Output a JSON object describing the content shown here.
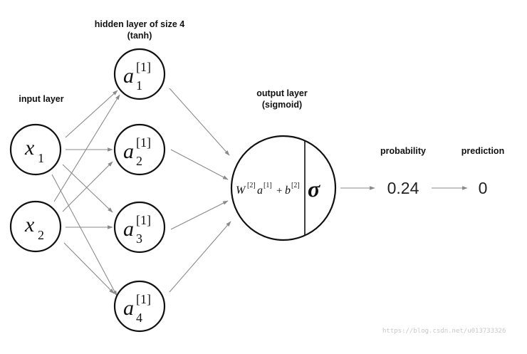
{
  "labels": {
    "input_layer": "input layer",
    "hidden_layer_line1": "hidden layer of size 4",
    "hidden_layer_line2": "(tanh)",
    "output_layer_line1": "output layer",
    "output_layer_line2": "(sigmoid)",
    "probability": "probability",
    "prediction": "prediction"
  },
  "inputs": [
    {
      "symbol": "x",
      "index": "1"
    },
    {
      "symbol": "x",
      "index": "2"
    }
  ],
  "hidden": [
    {
      "symbol": "a",
      "superscript": "[1]",
      "index": "1"
    },
    {
      "symbol": "a",
      "superscript": "[1]",
      "index": "2"
    },
    {
      "symbol": "a",
      "superscript": "[1]",
      "index": "3"
    },
    {
      "symbol": "a",
      "superscript": "[1]",
      "index": "4"
    }
  ],
  "output": {
    "W": "W",
    "W_sup": "[2]",
    "a": "a",
    "a_sup": "[1]",
    "plus": "+",
    "b": "b",
    "b_sup": "[2]",
    "sigma": "σ"
  },
  "probability_value": "0.24",
  "prediction_value": "0",
  "watermark": "https://blog.csdn.net/u013733326"
}
